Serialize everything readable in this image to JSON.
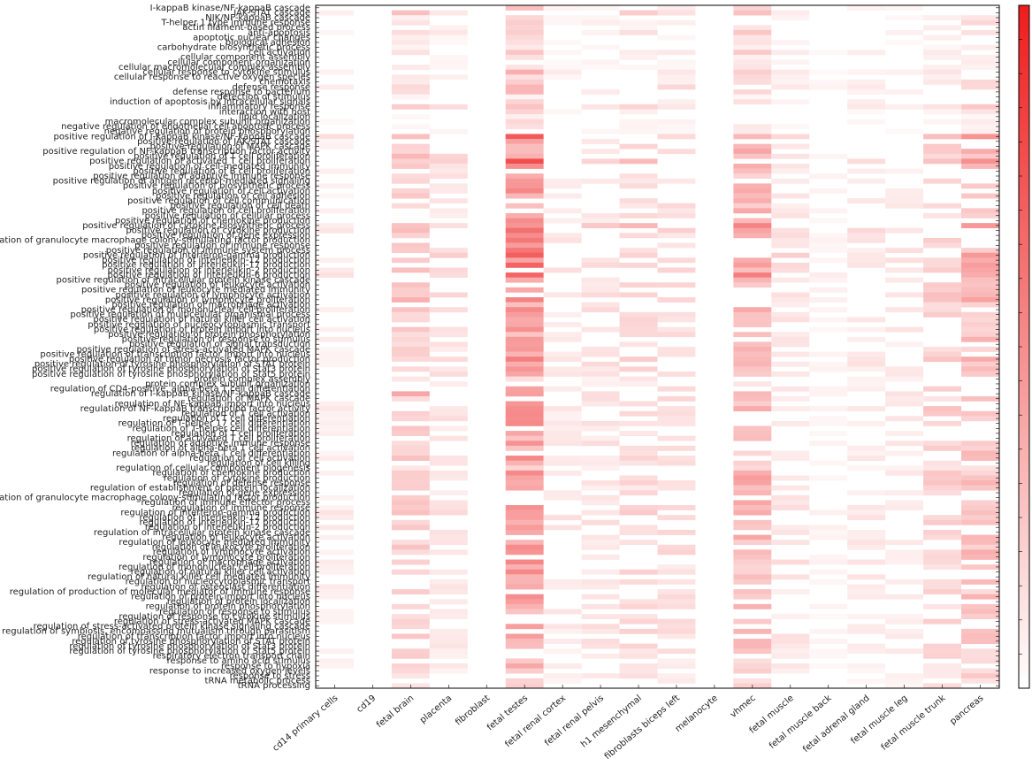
{
  "chart_data": {
    "type": "heatmap",
    "title": "",
    "xlabel": "",
    "ylabel": "",
    "colormap": {
      "low": "#ffffff",
      "high": "#ee1c1c"
    },
    "value_range": [
      0,
      1
    ],
    "columns": [
      "cd14 primary cells",
      "cd19",
      "fetal brain",
      "placenta",
      "fibroblast",
      "fetal testes",
      "fetal renal cortex",
      "fetal renal pelvis",
      "h1 mesenchymal",
      "fibroblasts biceps left",
      "melanocyte",
      "vhmec",
      "fetal muscle",
      "fetal muscle back",
      "fetal adrenal gland",
      "fetal muscle leg",
      "fetal muscle trunk",
      "pancreas"
    ],
    "column_weights": [
      0.15,
      0.0,
      0.45,
      0.25,
      0.0,
      0.85,
      0.2,
      0.25,
      0.35,
      0.3,
      0.0,
      0.6,
      0.25,
      0.1,
      0.2,
      0.2,
      0.4,
      0.55
    ],
    "rows": [
      "I-kappaB kinase/NF-kappaB cascade",
      "JAK-STAT cascade",
      "NIK/NF-kappaB cascade",
      "T-helper 1 type immune response",
      "actin filament-based process",
      "anti-apoptosis",
      "apoptotic nuclear changes",
      "biological adhesion",
      "carbohydrate biosynthetic process",
      "cell activation",
      "cellular component assembly",
      "cellular component organization",
      "cellular macromolecular complex assembly",
      "cellular response to cytokine stimulus",
      "cellular response to reactive oxygen species",
      "chemotaxis",
      "defense response",
      "defense response to bacterium",
      "detection of stimulus",
      "induction of apoptosis by intracellular signals",
      "inflammatory response",
      "interaction with host",
      "lipid localization",
      "macromolecular complex subunit organization",
      "negative regulation of endothelial cell apoptotic process",
      "negative regulation of protein phosphorylation",
      "positive regulation of I-kappaB kinase/NF-kappaB cascade",
      "positive regulation of JAK-STAT cascade",
      "positive regulation of MAPK cascade",
      "positive regulation of NF-kappaB transcription factor activity",
      "positive regulation of T cell proliferation",
      "positive regulation of activated T cell proliferation",
      "positive regulation of cell-mediated immunity",
      "positive regulation of B cell proliferation",
      "positive regulation of adaptive immune response",
      "positive regulation of antigen receptor-mediated signaling",
      "positive regulation of biosynthetic process",
      "positive regulation of cell activation",
      "positive regulation of cell adhesion",
      "positive regulation of cell communication",
      "positive regulation of cell death",
      "positive regulation of cell proliferation",
      "positive regulation of cellular process",
      "positive regulation of chemokine production",
      "positive regulation of cytokine biosynthetic process",
      "positive regulation of cytokine production",
      "positive regulation of gene expression",
      "positive regulation of granulocyte macrophage colony-stimulating factor production",
      "positive regulation of immune response",
      "positive regulation of immune system process",
      "positive regulation of interferon-gamma production",
      "positive regulation of interleukin-12 production",
      "positive regulation of interleukin-17 production",
      "positive regulation of interleukin-2 production",
      "positive regulation of interleukin-6 production",
      "positive regulation of intracellular protein kinase cascade",
      "positive regulation of leukocyte activation",
      "positive regulation of leukocyte mediated immunity",
      "positive regulation of lymphocyte activation",
      "positive regulation of lymphocyte proliferation",
      "positive regulation of macrophage activation",
      "positive regulation of mononuclear cell proliferation",
      "positive regulation of multicellular organismal process",
      "positive regulation of natural killer cell activation",
      "positive regulation of nucleocytoplasmic transport",
      "positive regulation of protein import into nucleus",
      "positive regulation of protein phosphorylation",
      "positive regulation of response to stimulus",
      "positive regulation of signal transduction",
      "positive regulation of stress-activated MAPK cascade",
      "positive regulation of transcription factor import into nucleus",
      "positive regulation of tumor necrosis factor production",
      "positive regulation of tyrosine phosphorylation of STAT protein",
      "positive regulation of tyrosine phosphorylation of Stat3 protein",
      "positive regulation of tyrosine phosphorylation of Stat5 protein",
      "protein complex assembly",
      "protein complex subunit organization",
      "regulation of CD4-positive, alpha-beta T cell differentiation",
      "regulation of I-kappaB kinase/NF-kappaB cascade",
      "regulation of MAPK cascade",
      "regulation of NF-kappaB import into nucleus",
      "regulation of NF-kappaB transcription factor activity",
      "regulation of T cell activation",
      "regulation of T cell differentiation",
      "regulation of T-helper 17 cell differentiation",
      "regulation of T-helper cell differentiation",
      "regulation of T cell proliferation",
      "regulation of activated T cell proliferation",
      "regulation of adaptive immune response",
      "regulation of alpha-beta T cell activation",
      "regulation of alpha-beta T cell differentiation",
      "regulation of cell activation",
      "regulation of cell killing",
      "regulation of cellular component biogenesis",
      "regulation of chemokine production",
      "regulation of cytokine production",
      "regulation of defense response",
      "regulation of establishment of protein localization",
      "regulation of gene expression",
      "regulation of granulocyte macrophage colony-stimulating factor production",
      "regulation of immune effector process",
      "regulation of immune response",
      "regulation of interferon-gamma production",
      "regulation of interleukin-12 production",
      "regulation of interleukin-17 production",
      "regulation of interleukin-2 production",
      "regulation of intracellular protein kinase cascade",
      "regulation of leukocyte activation",
      "regulation of leukocyte mediated immunity",
      "regulation of leukocyte proliferation",
      "regulation of lymphocyte activation",
      "regulation of lymphocyte proliferation",
      "regulation of macrophage activation",
      "regulation of mononuclear cell proliferation",
      "regulation of natural killer cell activation",
      "regulation of natural killer cell mediated immunity",
      "regulation of nucleocytoplasmic transport",
      "regulation of osteoclast differentiation",
      "regulation of production of molecular mediator of immune response",
      "regulation of protein import into nucleus",
      "regulation of protein localization",
      "regulation of protein phosphorylation",
      "regulation of response to stimulus",
      "regulation of response to cytokine stimulus",
      "regulation of stress-activated MAPK cascade",
      "regulation of stress-activated protein kinase signaling cascade",
      "regulation of symbiosis, encompassing mutualism through parasitism",
      "regulation of transcription factor import into nucleus",
      "regulation of tyrosine phosphorylation of STAT protein",
      "regulation of tyrosine phosphorylation of Stat3 protein",
      "regulation of tyrosine phosphorylation of Stat5 protein",
      "respiratory electron transport chain",
      "response to amino acid stimulus",
      "response to hypoxia",
      "response to increased oxygen levels",
      "response to stress",
      "tRNA metabolic process",
      "tRNA processing"
    ],
    "row_weights": [
      0.3,
      0.6,
      0.2,
      0.3,
      0.25,
      0.4,
      0.2,
      0.2,
      0.15,
      0.35,
      0.2,
      0.2,
      0.2,
      0.4,
      0.25,
      0.35,
      0.55,
      0.45,
      0.1,
      0.35,
      0.55,
      0.2,
      0.1,
      0.2,
      0.15,
      0.2,
      0.85,
      0.6,
      0.55,
      0.6,
      0.7,
      0.8,
      0.65,
      0.55,
      0.55,
      0.5,
      0.55,
      0.6,
      0.5,
      0.55,
      0.5,
      0.55,
      0.45,
      0.55,
      0.9,
      0.8,
      0.55,
      0.65,
      0.6,
      0.65,
      0.8,
      0.7,
      0.75,
      0.7,
      0.85,
      0.55,
      0.6,
      0.6,
      0.65,
      0.7,
      0.55,
      0.6,
      0.5,
      0.55,
      0.5,
      0.55,
      0.5,
      0.55,
      0.5,
      0.5,
      0.5,
      0.6,
      0.6,
      0.55,
      0.55,
      0.3,
      0.3,
      0.5,
      0.9,
      0.55,
      0.5,
      0.6,
      0.55,
      0.55,
      0.55,
      0.5,
      0.55,
      0.5,
      0.55,
      0.5,
      0.5,
      0.55,
      0.5,
      0.35,
      0.55,
      0.65,
      0.6,
      0.45,
      0.5,
      0.55,
      0.6,
      0.55,
      0.7,
      0.65,
      0.6,
      0.65,
      0.55,
      0.6,
      0.55,
      0.6,
      0.6,
      0.55,
      0.6,
      0.5,
      0.55,
      0.55,
      0.55,
      0.6,
      0.5,
      0.55,
      0.5,
      0.5,
      0.55,
      0.45,
      0.5,
      0.55,
      0.55,
      0.5,
      0.55,
      0.5,
      0.5,
      0.45,
      0.4,
      0.4,
      0.35,
      0.4,
      0.35,
      0.35
    ]
  }
}
